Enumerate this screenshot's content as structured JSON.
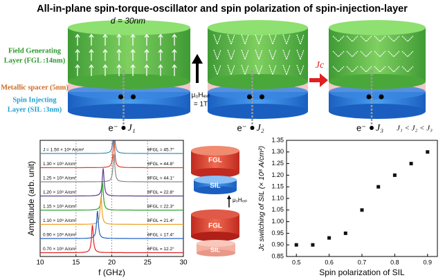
{
  "title": "All-in-plane spin-torque-oscillator and spin polarization of spin-injection-layer",
  "diagram": {
    "diameter": "d = 30nm",
    "fgl": [
      "Field Generating",
      "Layer (FGL :14nm)"
    ],
    "spacer": "Metallic spacer (5nm)",
    "sil": [
      "Spin Injecting",
      "Layer (SIL :3nm)"
    ],
    "field": [
      "μ₀Hₑₓₜ",
      "= 1T"
    ],
    "current": "Jc",
    "electron": [
      "e⁻",
      "e⁻",
      "e⁻"
    ],
    "currents": [
      "J₁",
      "J₂",
      "J₃"
    ],
    "order": "J₁ < J₂ < J₃",
    "inset": {
      "upper": [
        "FGL",
        "SIL"
      ],
      "field": "μ₀Hₑₓₜ",
      "lower": [
        "FGL",
        "SIL"
      ]
    }
  },
  "chart_data": [
    {
      "type": "spectra",
      "xlabel": "f (GHz)",
      "ylabel": "Amplitude (arb. unit)",
      "xlim": [
        10,
        30
      ],
      "xticks": [
        10,
        15,
        20,
        25,
        30
      ],
      "grid": true,
      "series": [
        {
          "name": "J = 1.50 × 10⁸ A/cm²",
          "angle_label": "θFGL = 45.7°",
          "peak": 20.3,
          "color": "#3a8fb7"
        },
        {
          "name": "1.30 × 10⁸ A/cm²",
          "angle_label": "θFGL = 44.8°",
          "peak": 20.3,
          "color": "#d9402b"
        },
        {
          "name": "1.25 × 10⁸ A/cm²",
          "angle_label": "θFGL = 44.1°",
          "peak": 20.3,
          "color": "#888888"
        },
        {
          "name": "1.20 × 10⁸ A/cm²",
          "angle_label": "θFGL = 22.8°",
          "peak": 18.8,
          "color": "#5a3c8c"
        },
        {
          "name": "1.15 × 10⁸ A/cm²",
          "angle_label": "θFGL = 22.3°",
          "peak": 18.7,
          "color": "#2ca02c"
        },
        {
          "name": "1.10 × 10⁸ A/cm²",
          "angle_label": "θFGL = 21.4°",
          "peak": 18.5,
          "color": "#f0a020"
        },
        {
          "name": "0.90 × 10⁸ A/cm²",
          "angle_label": "θFGL = 17.4°",
          "peak": 18.0,
          "color": "#2060c0"
        },
        {
          "name": "0.70 × 10⁸ A/cm²",
          "angle_label": "θFGL = 12.2°",
          "peak": 17.3,
          "color": "#e02020"
        }
      ]
    },
    {
      "type": "scatter",
      "xlabel": "Spin polarization of SIL",
      "ylabel": "Jc switching of SIL (× 10⁸ A/cm²)",
      "x": [
        0.5,
        0.55,
        0.6,
        0.65,
        0.7,
        0.75,
        0.8,
        0.85,
        0.9
      ],
      "values": [
        0.9,
        0.9,
        0.93,
        0.95,
        1.05,
        1.15,
        1.2,
        1.25,
        1.3
      ],
      "color": "#111111",
      "xlim": [
        0.47,
        0.93
      ],
      "xticks": [
        0.5,
        0.6,
        0.7,
        0.8,
        0.9
      ],
      "ylim": [
        0.85,
        1.35
      ],
      "yticks": [
        0.85,
        {
          "value": 0.9,
          "label": "0.90"
        },
        0.95,
        {
          "value": 1.0,
          "label": "1.00"
        },
        1.05,
        {
          "value": 1.1,
          "label": "1.10"
        },
        1.15,
        {
          "value": 1.2,
          "label": "1.20"
        },
        1.25,
        {
          "value": 1.3,
          "label": "1.30"
        },
        1.35
      ]
    }
  ]
}
